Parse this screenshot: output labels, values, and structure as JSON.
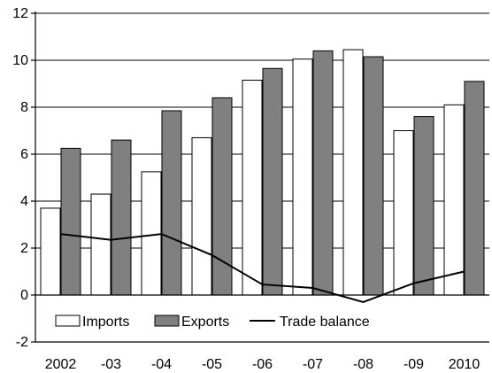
{
  "chart_data": {
    "type": "bar",
    "categories": [
      "2002",
      "-03",
      "-04",
      "-05",
      "-06",
      "-07",
      "-08",
      "-09",
      "2010"
    ],
    "series": [
      {
        "name": "Imports",
        "kind": "bar",
        "color": "#ffffff",
        "values": [
          3.7,
          4.3,
          5.25,
          6.7,
          9.15,
          10.05,
          10.45,
          7.0,
          8.1
        ]
      },
      {
        "name": "Exports",
        "kind": "bar",
        "color": "#808080",
        "values": [
          6.25,
          6.6,
          7.85,
          8.4,
          9.65,
          10.4,
          10.15,
          7.6,
          9.1
        ]
      },
      {
        "name": "Trade balance",
        "kind": "line",
        "color": "#000000",
        "values": [
          2.6,
          2.35,
          2.6,
          1.7,
          0.45,
          0.3,
          -0.3,
          0.5,
          1.0
        ]
      }
    ],
    "yticks": [
      -2,
      0,
      2,
      4,
      6,
      8,
      10,
      12
    ],
    "ylim": [
      -2,
      12
    ],
    "grid": true,
    "legend_position": "bottom-left inside plot"
  }
}
